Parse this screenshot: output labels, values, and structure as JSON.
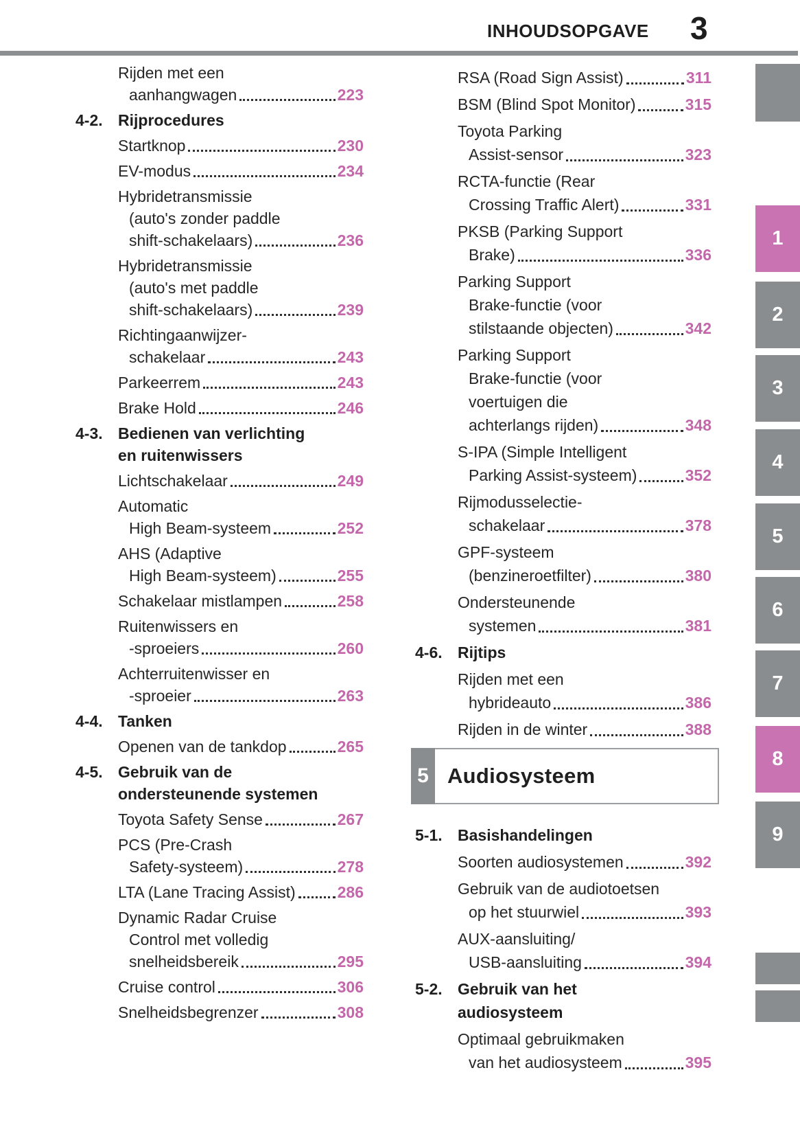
{
  "header": {
    "title": "INHOUDSOPGAVE",
    "page_number": "3"
  },
  "colors": {
    "accent_pink": "#c367aa",
    "tab_pink": "#ca73b2",
    "tab_gray": "#898d90",
    "rule_gray": "#8b8f92"
  },
  "columns": {
    "left": [
      {
        "type": "entry",
        "lines": [
          "Rijden met een",
          "aanhangwagen"
        ],
        "page": "223"
      },
      {
        "type": "section",
        "number": "4-2.",
        "lines": [
          "Rijprocedures"
        ]
      },
      {
        "type": "entry",
        "lines": [
          "Startknop"
        ],
        "page": "230"
      },
      {
        "type": "entry",
        "lines": [
          "EV-modus"
        ],
        "page": "234"
      },
      {
        "type": "entry",
        "lines": [
          "Hybridetransmissie",
          "(auto's zonder paddle",
          "shift-schakelaars)"
        ],
        "page": "236"
      },
      {
        "type": "entry",
        "lines": [
          "Hybridetransmissie",
          "(auto's met paddle",
          "shift-schakelaars)"
        ],
        "page": "239"
      },
      {
        "type": "entry",
        "lines": [
          "Richtingaanwijzer-",
          "schakelaar"
        ],
        "page": "243"
      },
      {
        "type": "entry",
        "lines": [
          "Parkeerrem"
        ],
        "page": "243"
      },
      {
        "type": "entry",
        "lines": [
          "Brake Hold"
        ],
        "page": "246"
      },
      {
        "type": "section",
        "number": "4-3.",
        "lines": [
          "Bedienen van verlichting",
          "en ruitenwissers"
        ]
      },
      {
        "type": "entry",
        "lines": [
          "Lichtschakelaar"
        ],
        "page": "249"
      },
      {
        "type": "entry",
        "lines": [
          "Automatic",
          "High Beam-systeem"
        ],
        "page": "252"
      },
      {
        "type": "entry",
        "lines": [
          "AHS (Adaptive",
          "High Beam-systeem)"
        ],
        "page": "255"
      },
      {
        "type": "entry",
        "lines": [
          "Schakelaar mistlampen"
        ],
        "page": "258"
      },
      {
        "type": "entry",
        "lines": [
          "Ruitenwissers en",
          "-sproeiers"
        ],
        "page": "260"
      },
      {
        "type": "entry",
        "lines": [
          "Achterruitenwisser en",
          "-sproeier"
        ],
        "page": "263"
      },
      {
        "type": "section",
        "number": "4-4.",
        "lines": [
          "Tanken"
        ]
      },
      {
        "type": "entry",
        "lines": [
          "Openen van de tankdop"
        ],
        "page": "265"
      },
      {
        "type": "section",
        "number": "4-5.",
        "lines": [
          "Gebruik van de",
          "ondersteunende systemen"
        ]
      },
      {
        "type": "entry",
        "lines": [
          "Toyota Safety Sense"
        ],
        "page": "267"
      },
      {
        "type": "entry",
        "lines": [
          "PCS (Pre-Crash",
          "Safety-systeem)"
        ],
        "page": "278"
      },
      {
        "type": "entry",
        "lines": [
          "LTA (Lane Tracing Assist)"
        ],
        "page": "286"
      },
      {
        "type": "entry",
        "lines": [
          "Dynamic Radar Cruise",
          "Control met volledig",
          "snelheidsbereik"
        ],
        "page": "295"
      },
      {
        "type": "entry",
        "lines": [
          "Cruise control"
        ],
        "page": "306"
      },
      {
        "type": "entry",
        "lines": [
          "Snelheidsbegrenzer"
        ],
        "page": "308"
      }
    ],
    "right": [
      {
        "type": "entry",
        "lines": [
          "RSA (Road Sign Assist)"
        ],
        "page": "311"
      },
      {
        "type": "entry",
        "lines": [
          "BSM (Blind Spot Monitor)"
        ],
        "page": "315"
      },
      {
        "type": "entry",
        "lines": [
          "Toyota Parking",
          "Assist-sensor"
        ],
        "page": "323"
      },
      {
        "type": "entry",
        "lines": [
          "RCTA-functie (Rear",
          "Crossing Traffic Alert)"
        ],
        "page": "331"
      },
      {
        "type": "entry",
        "lines": [
          "PKSB (Parking Support",
          "Brake)"
        ],
        "page": "336"
      },
      {
        "type": "entry",
        "lines": [
          "Parking Support",
          "Brake-functie (voor",
          "stilstaande objecten)"
        ],
        "page": "342"
      },
      {
        "type": "entry",
        "lines": [
          "Parking Support",
          "Brake-functie (voor",
          "voertuigen die",
          "achterlangs rijden)"
        ],
        "page": "348"
      },
      {
        "type": "entry",
        "lines": [
          "S-IPA (Simple Intelligent",
          "Parking Assist-systeem)"
        ],
        "page": "352"
      },
      {
        "type": "entry",
        "lines": [
          "Rijmodusselectie-",
          "schakelaar"
        ],
        "page": "378"
      },
      {
        "type": "entry",
        "lines": [
          "GPF-systeem",
          "(benzineroetfilter)"
        ],
        "page": "380"
      },
      {
        "type": "entry",
        "lines": [
          "Ondersteunende",
          "systemen"
        ],
        "page": "381"
      },
      {
        "type": "section",
        "number": "4-6.",
        "lines": [
          "Rijtips"
        ]
      },
      {
        "type": "entry",
        "lines": [
          "Rijden met een",
          "hybrideauto"
        ],
        "page": "386"
      },
      {
        "type": "entry",
        "lines": [
          "Rijden in de winter"
        ],
        "page": "388"
      },
      {
        "type": "chapter",
        "number": "5",
        "title": "Audiosysteem"
      },
      {
        "type": "section",
        "number": "5-1.",
        "lines": [
          "Basishandelingen"
        ]
      },
      {
        "type": "entry",
        "lines": [
          "Soorten audiosystemen"
        ],
        "page": "392"
      },
      {
        "type": "entry",
        "lines": [
          "Gebruik van de audiotoetsen",
          "op het stuurwiel"
        ],
        "page": "393"
      },
      {
        "type": "entry",
        "lines": [
          "AUX-aansluiting/",
          "USB-aansluiting"
        ],
        "page": "394"
      },
      {
        "type": "section",
        "number": "5-2.",
        "lines": [
          "Gebruik van het",
          "audiosysteem"
        ]
      },
      {
        "type": "entry",
        "lines": [
          "Optimaal gebruikmaken",
          "van het audiosysteem"
        ],
        "page": "395"
      }
    ]
  },
  "side_tabs": {
    "top_block_label": "",
    "numbered": [
      {
        "label": "1",
        "active": true
      },
      {
        "label": "2",
        "active": false
      },
      {
        "label": "3",
        "active": false
      },
      {
        "label": "4",
        "active": false
      },
      {
        "label": "5",
        "active": false
      },
      {
        "label": "6",
        "active": false
      },
      {
        "label": "7",
        "active": false
      },
      {
        "label": "8",
        "active": true
      },
      {
        "label": "9",
        "active": false
      }
    ],
    "bottom_block_labels": [
      "",
      ""
    ]
  }
}
